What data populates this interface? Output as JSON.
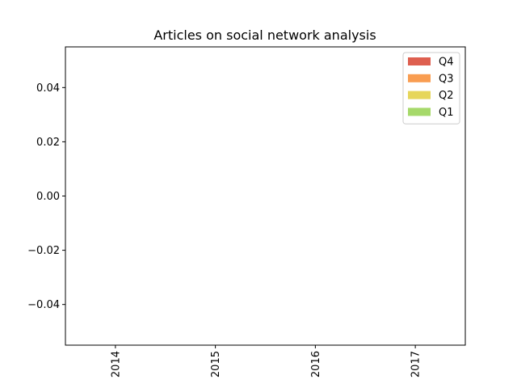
{
  "chart_data": {
    "type": "bar",
    "stacked": true,
    "title": "Articles on social network analysis",
    "xlabel": "",
    "ylabel": "",
    "categories": [
      "2014",
      "2015",
      "2016",
      "2017"
    ],
    "series": [
      {
        "name": "Q1",
        "color": "#a6d96a",
        "values": [
          0,
          0,
          0,
          0
        ]
      },
      {
        "name": "Q2",
        "color": "#e6d65a",
        "values": [
          0,
          0,
          0,
          0
        ]
      },
      {
        "name": "Q3",
        "color": "#f99d51",
        "values": [
          0,
          0,
          0,
          0
        ]
      },
      {
        "name": "Q4",
        "color": "#de5f4f",
        "values": [
          0,
          0,
          0,
          0
        ]
      }
    ],
    "ylim": [
      -0.055,
      0.055
    ],
    "yticks": [
      -0.04,
      -0.02,
      0.0,
      0.02,
      0.04
    ],
    "ytick_labels": [
      "−0.04",
      "−0.02",
      "0.00",
      "0.02",
      "0.04"
    ],
    "xtick_rotation": "vertical",
    "legend": {
      "position": "top-right",
      "order": [
        "Q4",
        "Q3",
        "Q2",
        "Q1"
      ]
    },
    "grid": false
  }
}
